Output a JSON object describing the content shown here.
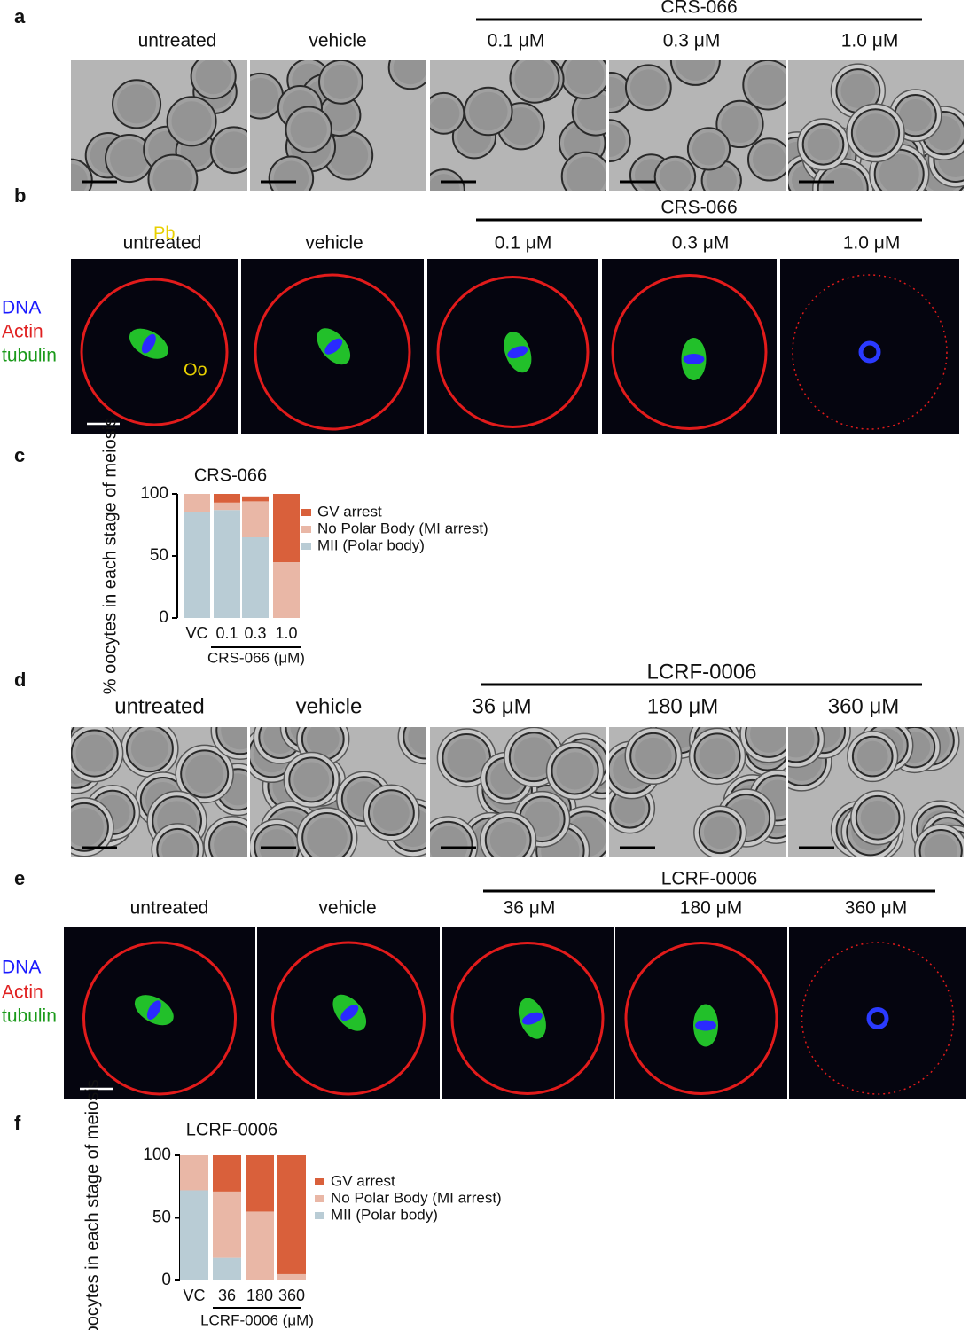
{
  "panels": [
    {
      "label": "a",
      "group": "CRS-066",
      "columns": [
        "untreated",
        "vehicle",
        "0.1 μM",
        "0.3 μM",
        "1.0 μM"
      ]
    },
    {
      "label": "b",
      "group": "CRS-066",
      "columns": [
        "untreated",
        "vehicle",
        "0.1 μM",
        "0.3 μM",
        "1.0 μM"
      ],
      "legend": [
        "DNA",
        "Actin",
        "tubulin"
      ],
      "annotations": [
        "Pb",
        "Oo"
      ]
    },
    {
      "label": "c"
    },
    {
      "label": "d",
      "group": "LCRF-0006",
      "columns": [
        "untreated",
        "vehicle",
        "36 μM",
        "180 μM",
        "360 μM"
      ]
    },
    {
      "label": "e",
      "group": "LCRF-0006",
      "columns": [
        "untreated",
        "vehicle",
        "36 μM",
        "180 μM",
        "360 μM"
      ],
      "legend": [
        "DNA",
        "Actin",
        "tubulin"
      ]
    },
    {
      "label": "f"
    }
  ],
  "chart_data": [
    {
      "type": "stacked_bar",
      "title": "CRS-066",
      "ylabel": "% oocytes in each stage of meiosis",
      "xlabel": "CRS-066 (μM)",
      "categories": [
        "VC",
        "0.1",
        "0.3",
        "1.0"
      ],
      "ylim": [
        0,
        100
      ],
      "yticks": [
        0,
        50,
        100
      ],
      "series": [
        {
          "name": "GV arrest",
          "color": "#d9603b",
          "values": [
            0,
            7,
            4,
            55
          ]
        },
        {
          "name": "No Polar Body (MI arrest)",
          "color": "#e9b7a6",
          "values": [
            15,
            6,
            29,
            45
          ]
        },
        {
          "name": "MII (Polar body)",
          "color": "#b9ccd5",
          "values": [
            85,
            87,
            65,
            0
          ]
        }
      ]
    },
    {
      "type": "stacked_bar",
      "title": "LCRF-0006",
      "ylabel": "% oocytes in each stage of meiosis",
      "xlabel": "LCRF-0006 (μM)",
      "categories": [
        "VC",
        "36",
        "180",
        "360"
      ],
      "ylim": [
        0,
        100
      ],
      "yticks": [
        0,
        50,
        100
      ],
      "series": [
        {
          "name": "GV arrest",
          "color": "#d9603b",
          "values": [
            0,
            29,
            45,
            95
          ]
        },
        {
          "name": "No Polar Body (MI arrest)",
          "color": "#e9b7a6",
          "values": [
            28,
            53,
            55,
            5
          ]
        },
        {
          "name": "MII (Polar body)",
          "color": "#b9ccd5",
          "values": [
            72,
            18,
            0,
            0
          ]
        }
      ]
    }
  ]
}
